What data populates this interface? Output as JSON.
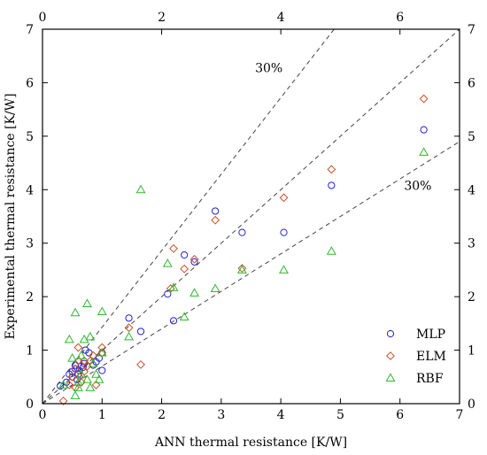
{
  "chart_data": {
    "type": "scatter",
    "xlabel": "ANN thermal resistance [K/W]",
    "ylabel": "Experimental thermal resistance [K/W]",
    "xlim": [
      0,
      7
    ],
    "ylim": [
      0,
      7
    ],
    "bottom_ticks": [
      0,
      1,
      2,
      3,
      4,
      5,
      6,
      7
    ],
    "left_ticks": [
      0,
      1,
      2,
      3,
      4,
      5,
      6,
      7
    ],
    "top_ticks": [
      "0",
      "2",
      "4",
      "6"
    ],
    "right_ticks": [
      "0",
      "1",
      "2",
      "3",
      "4",
      "5",
      "6",
      "7"
    ],
    "grid": false,
    "legend_position": "bottom-right",
    "reference_lines": [
      {
        "slope": 1.0,
        "style": "dashed"
      },
      {
        "slope": 1.43,
        "style": "dashed",
        "label": "30%"
      },
      {
        "slope": 0.7,
        "style": "dashed",
        "label": "30%"
      }
    ],
    "series": [
      {
        "name": "MLP",
        "marker": "circle",
        "color": "#1f1fd6",
        "points": [
          [
            0.3,
            0.33
          ],
          [
            0.4,
            0.4
          ],
          [
            0.45,
            0.55
          ],
          [
            0.5,
            0.6
          ],
          [
            0.55,
            0.65
          ],
          [
            0.6,
            0.55
          ],
          [
            0.65,
            0.7
          ],
          [
            0.7,
            0.75
          ],
          [
            0.72,
            1.0
          ],
          [
            0.78,
            0.95
          ],
          [
            0.85,
            0.72
          ],
          [
            0.9,
            0.78
          ],
          [
            0.95,
            0.85
          ],
          [
            1.0,
            0.95
          ],
          [
            1.0,
            0.62
          ],
          [
            0.58,
            0.45
          ],
          [
            0.5,
            0.5
          ],
          [
            0.55,
            0.72
          ],
          [
            0.62,
            0.62
          ],
          [
            0.68,
            0.68
          ],
          [
            1.45,
            1.6
          ],
          [
            1.65,
            1.35
          ],
          [
            2.1,
            2.05
          ],
          [
            2.2,
            1.55
          ],
          [
            2.38,
            2.78
          ],
          [
            2.55,
            2.65
          ],
          [
            2.9,
            3.6
          ],
          [
            3.35,
            3.2
          ],
          [
            4.05,
            3.2
          ],
          [
            4.85,
            4.08
          ],
          [
            6.4,
            5.12
          ]
        ]
      },
      {
        "name": "ELM",
        "marker": "diamond",
        "color": "#c8502a",
        "points": [
          [
            0.35,
            0.05
          ],
          [
            0.45,
            0.35
          ],
          [
            0.5,
            0.5
          ],
          [
            0.55,
            0.65
          ],
          [
            0.6,
            1.05
          ],
          [
            0.65,
            0.4
          ],
          [
            0.7,
            0.6
          ],
          [
            0.75,
            0.7
          ],
          [
            0.8,
            0.8
          ],
          [
            0.85,
            0.9
          ],
          [
            0.9,
            0.35
          ],
          [
            1.0,
            1.05
          ],
          [
            1.0,
            0.95
          ],
          [
            0.55,
            0.3
          ],
          [
            0.6,
            0.8
          ],
          [
            0.62,
            0.5
          ],
          [
            0.7,
            0.8
          ],
          [
            1.45,
            1.42
          ],
          [
            1.65,
            0.73
          ],
          [
            2.15,
            2.15
          ],
          [
            2.2,
            2.9
          ],
          [
            2.38,
            2.52
          ],
          [
            2.55,
            2.7
          ],
          [
            2.9,
            3.43
          ],
          [
            3.35,
            2.53
          ],
          [
            4.05,
            3.85
          ],
          [
            4.85,
            4.38
          ],
          [
            6.4,
            5.7
          ]
        ]
      },
      {
        "name": "RBF",
        "marker": "triangle",
        "color": "#2eb82e",
        "points": [
          [
            0.35,
            0.35
          ],
          [
            0.45,
            1.2
          ],
          [
            0.5,
            0.85
          ],
          [
            0.55,
            0.15
          ],
          [
            0.55,
            1.7
          ],
          [
            0.6,
            0.3
          ],
          [
            0.65,
            0.9
          ],
          [
            0.7,
            1.2
          ],
          [
            0.75,
            1.87
          ],
          [
            0.75,
            0.45
          ],
          [
            0.8,
            0.3
          ],
          [
            0.8,
            1.25
          ],
          [
            0.85,
            0.75
          ],
          [
            0.9,
            0.55
          ],
          [
            0.95,
            0.45
          ],
          [
            1.0,
            1.72
          ],
          [
            1.0,
            0.95
          ],
          [
            0.6,
            0.4
          ],
          [
            0.65,
            0.55
          ],
          [
            1.45,
            1.25
          ],
          [
            1.65,
            4.0
          ],
          [
            2.1,
            2.62
          ],
          [
            2.2,
            2.17
          ],
          [
            2.38,
            1.62
          ],
          [
            2.55,
            2.07
          ],
          [
            2.9,
            2.15
          ],
          [
            3.35,
            2.5
          ],
          [
            4.05,
            2.5
          ],
          [
            4.85,
            2.85
          ],
          [
            6.4,
            4.7
          ]
        ]
      }
    ]
  }
}
